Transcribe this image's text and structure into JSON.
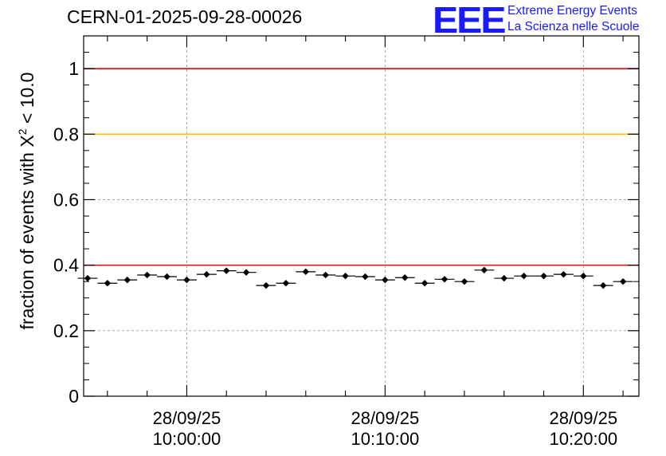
{
  "header": {
    "run_id": "CERN-01-2025-09-28-00026"
  },
  "logo": {
    "mark": "EEE",
    "line1": "Extreme Energy Events",
    "line2": "La Scienza nelle Scuole",
    "color": "#1a1aff"
  },
  "chart_data": {
    "type": "scatter",
    "title": "CERN-01-2025-09-28-00026",
    "xlabel": "",
    "ylabel_prefix": "fraction of events with ",
    "ylabel_symbol": "X",
    "ylabel_sup": "2",
    "ylabel_suffix": " < 10.0",
    "ylim": [
      0,
      1.1
    ],
    "xlim_minutes": [
      -5.2,
      22.8
    ],
    "y_ticks": [
      {
        "value": 0,
        "label": "0"
      },
      {
        "value": 0.2,
        "label": "0.2"
      },
      {
        "value": 0.4,
        "label": "0.4"
      },
      {
        "value": 0.6,
        "label": "0.6"
      },
      {
        "value": 0.8,
        "label": "0.8"
      },
      {
        "value": 1,
        "label": "1"
      }
    ],
    "x_ticks": [
      {
        "minutes": 0,
        "date": "28/09/25",
        "time": "10:00:00"
      },
      {
        "minutes": 10,
        "date": "28/09/25",
        "time": "10:10:00"
      },
      {
        "minutes": 20,
        "date": "28/09/25",
        "time": "10:20:00"
      }
    ],
    "grid": true,
    "bin_width_minutes": 1,
    "x_start_minutes": -5,
    "values": [
      0.36,
      0.345,
      0.355,
      0.37,
      0.365,
      0.355,
      0.372,
      0.383,
      0.378,
      0.338,
      0.345,
      0.38,
      0.37,
      0.367,
      0.365,
      0.355,
      0.362,
      0.345,
      0.357,
      0.35,
      0.385,
      0.36,
      0.367,
      0.367,
      0.372,
      0.367,
      0.338,
      0.35
    ],
    "reference_lines": [
      {
        "value": 1.0,
        "color": "#e8000b"
      },
      {
        "value": 0.8,
        "color": "#ffc000"
      },
      {
        "value": 0.4,
        "color": "#e8000b"
      }
    ]
  }
}
